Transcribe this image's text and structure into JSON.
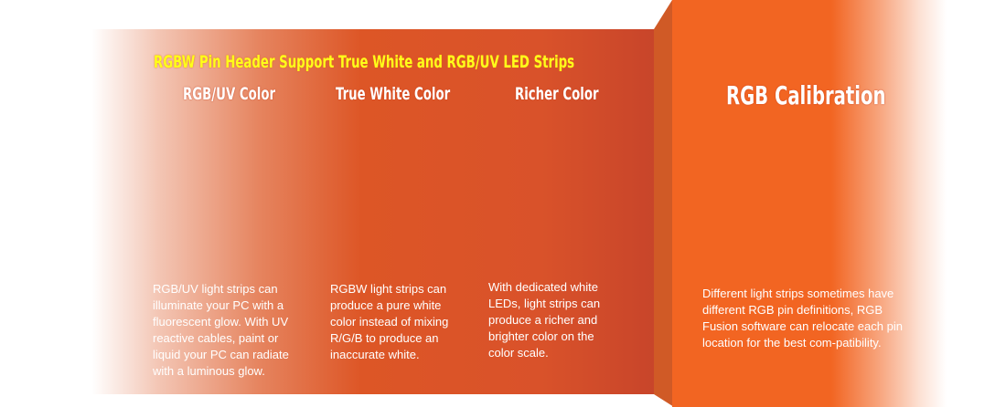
{
  "colors": {
    "panel_left": "#dd5626",
    "panel_right": "#f26522",
    "title": "#ffff1a"
  },
  "banner_title": "RGBW Pin Header Support True White and RGB/UV LED Strips",
  "columns": [
    {
      "heading": "RGB/UV Color",
      "text": "RGB/UV light strips can illuminate your PC with a fluorescent glow. With UV reactive cables, paint or liquid your PC can radiate with a luminous glow."
    },
    {
      "heading": "True White Color",
      "text": "RGBW light strips can produce a pure white color instead of mixing R/G/B to produce an inaccurate white."
    },
    {
      "heading": "Richer Color",
      "text": "With dedicated white LEDs, light strips can produce a richer and brighter color on the color scale."
    }
  ],
  "calibration": {
    "heading": "RGB Calibration",
    "text": "Different light strips sometimes have different RGB pin definitions, RGB Fusion software can relocate each pin location for the best com-patibility."
  }
}
